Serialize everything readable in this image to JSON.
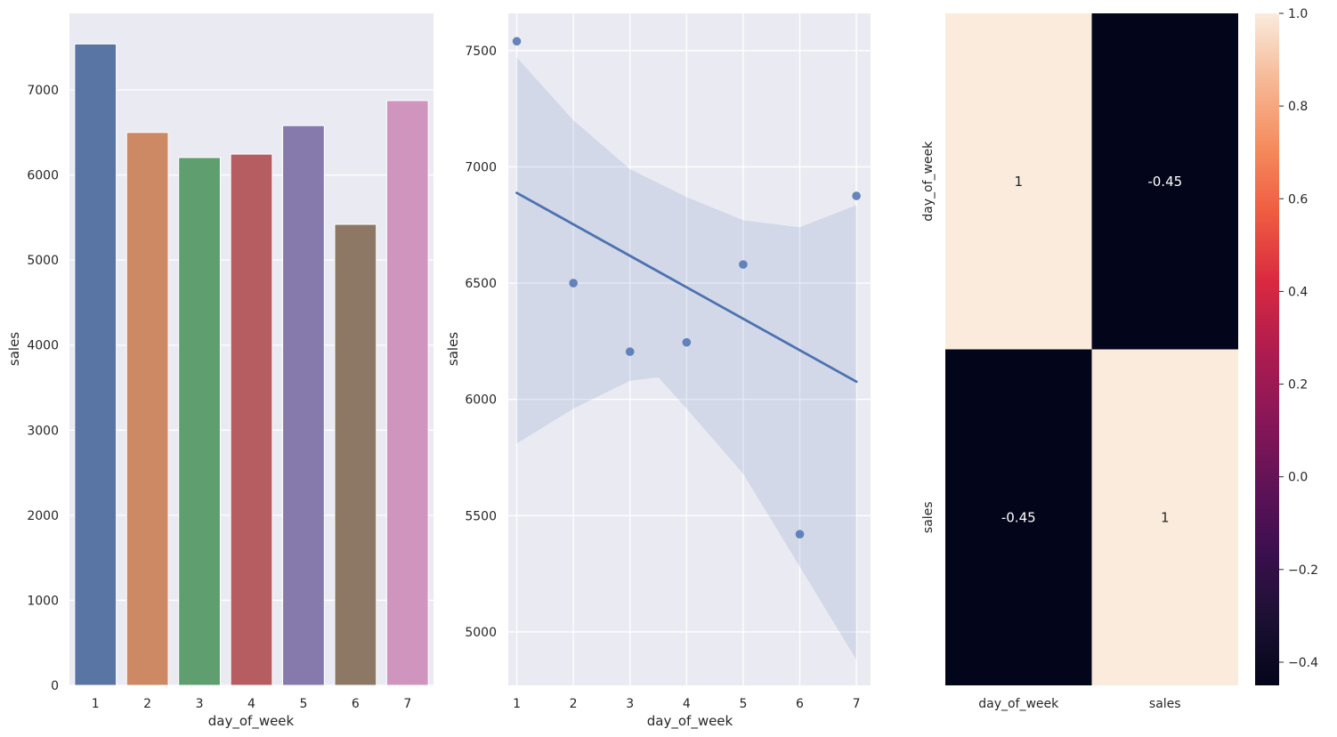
{
  "chart_data": [
    {
      "type": "bar",
      "xlabel": "day_of_week",
      "ylabel": "sales",
      "categories": [
        "1",
        "2",
        "3",
        "4",
        "5",
        "6",
        "7"
      ],
      "values": [
        7540,
        6500,
        6205,
        6245,
        6580,
        5420,
        6875
      ],
      "colors": [
        "#5975a4",
        "#cc8963",
        "#5f9e6e",
        "#b55d60",
        "#857aab",
        "#8d7866",
        "#d095bf"
      ],
      "ylim": [
        0,
        7900
      ],
      "yticks": [
        0,
        1000,
        2000,
        3000,
        4000,
        5000,
        6000,
        7000
      ],
      "grid": true
    },
    {
      "type": "scatter",
      "xlabel": "day_of_week",
      "ylabel": "sales",
      "x": [
        1,
        2,
        3,
        4,
        5,
        6,
        7
      ],
      "y": [
        7540,
        6500,
        6205,
        6245,
        6580,
        5420,
        6875
      ],
      "regression": {
        "x": [
          1,
          7
        ],
        "y": [
          6888,
          6076
        ]
      },
      "ci_upper": [
        [
          1,
          7470
        ],
        [
          2,
          7200
        ],
        [
          3,
          6990
        ],
        [
          4,
          6870
        ],
        [
          5,
          6770
        ],
        [
          6,
          6740
        ],
        [
          7,
          6835
        ]
      ],
      "ci_lower": [
        [
          1,
          5810
        ],
        [
          2,
          5960
        ],
        [
          3,
          6080
        ],
        [
          3.5,
          6095
        ],
        [
          4,
          5960
        ],
        [
          5,
          5680
        ],
        [
          6,
          5280
        ],
        [
          7,
          4880
        ]
      ],
      "xlim": [
        0.85,
        7.25
      ],
      "ylim": [
        4770,
        7660
      ],
      "xticks": [
        1,
        2,
        3,
        4,
        5,
        6,
        7
      ],
      "yticks": [
        5000,
        5500,
        6000,
        6500,
        7000,
        7500
      ],
      "color": "#4c72b0",
      "grid": true
    },
    {
      "type": "heatmap",
      "rows": [
        "day_of_week",
        "sales"
      ],
      "cols": [
        "day_of_week",
        "sales"
      ],
      "values": [
        [
          1,
          -0.45
        ],
        [
          -0.45,
          1
        ]
      ],
      "annotations": [
        [
          "1",
          "-0.45"
        ],
        [
          "-0.45",
          "1"
        ]
      ],
      "colorbar": {
        "min": -0.45,
        "max": 1.0,
        "ticks": [
          -0.4,
          -0.2,
          0.0,
          0.2,
          0.4,
          0.6,
          0.8,
          1.0
        ],
        "tick_labels": [
          "−0.4",
          "−0.2",
          "0.0",
          "0.2",
          "0.4",
          "0.6",
          "0.8",
          "1.0"
        ]
      },
      "colors": {
        "high": "#faebdd",
        "low": "#03051a"
      }
    }
  ]
}
